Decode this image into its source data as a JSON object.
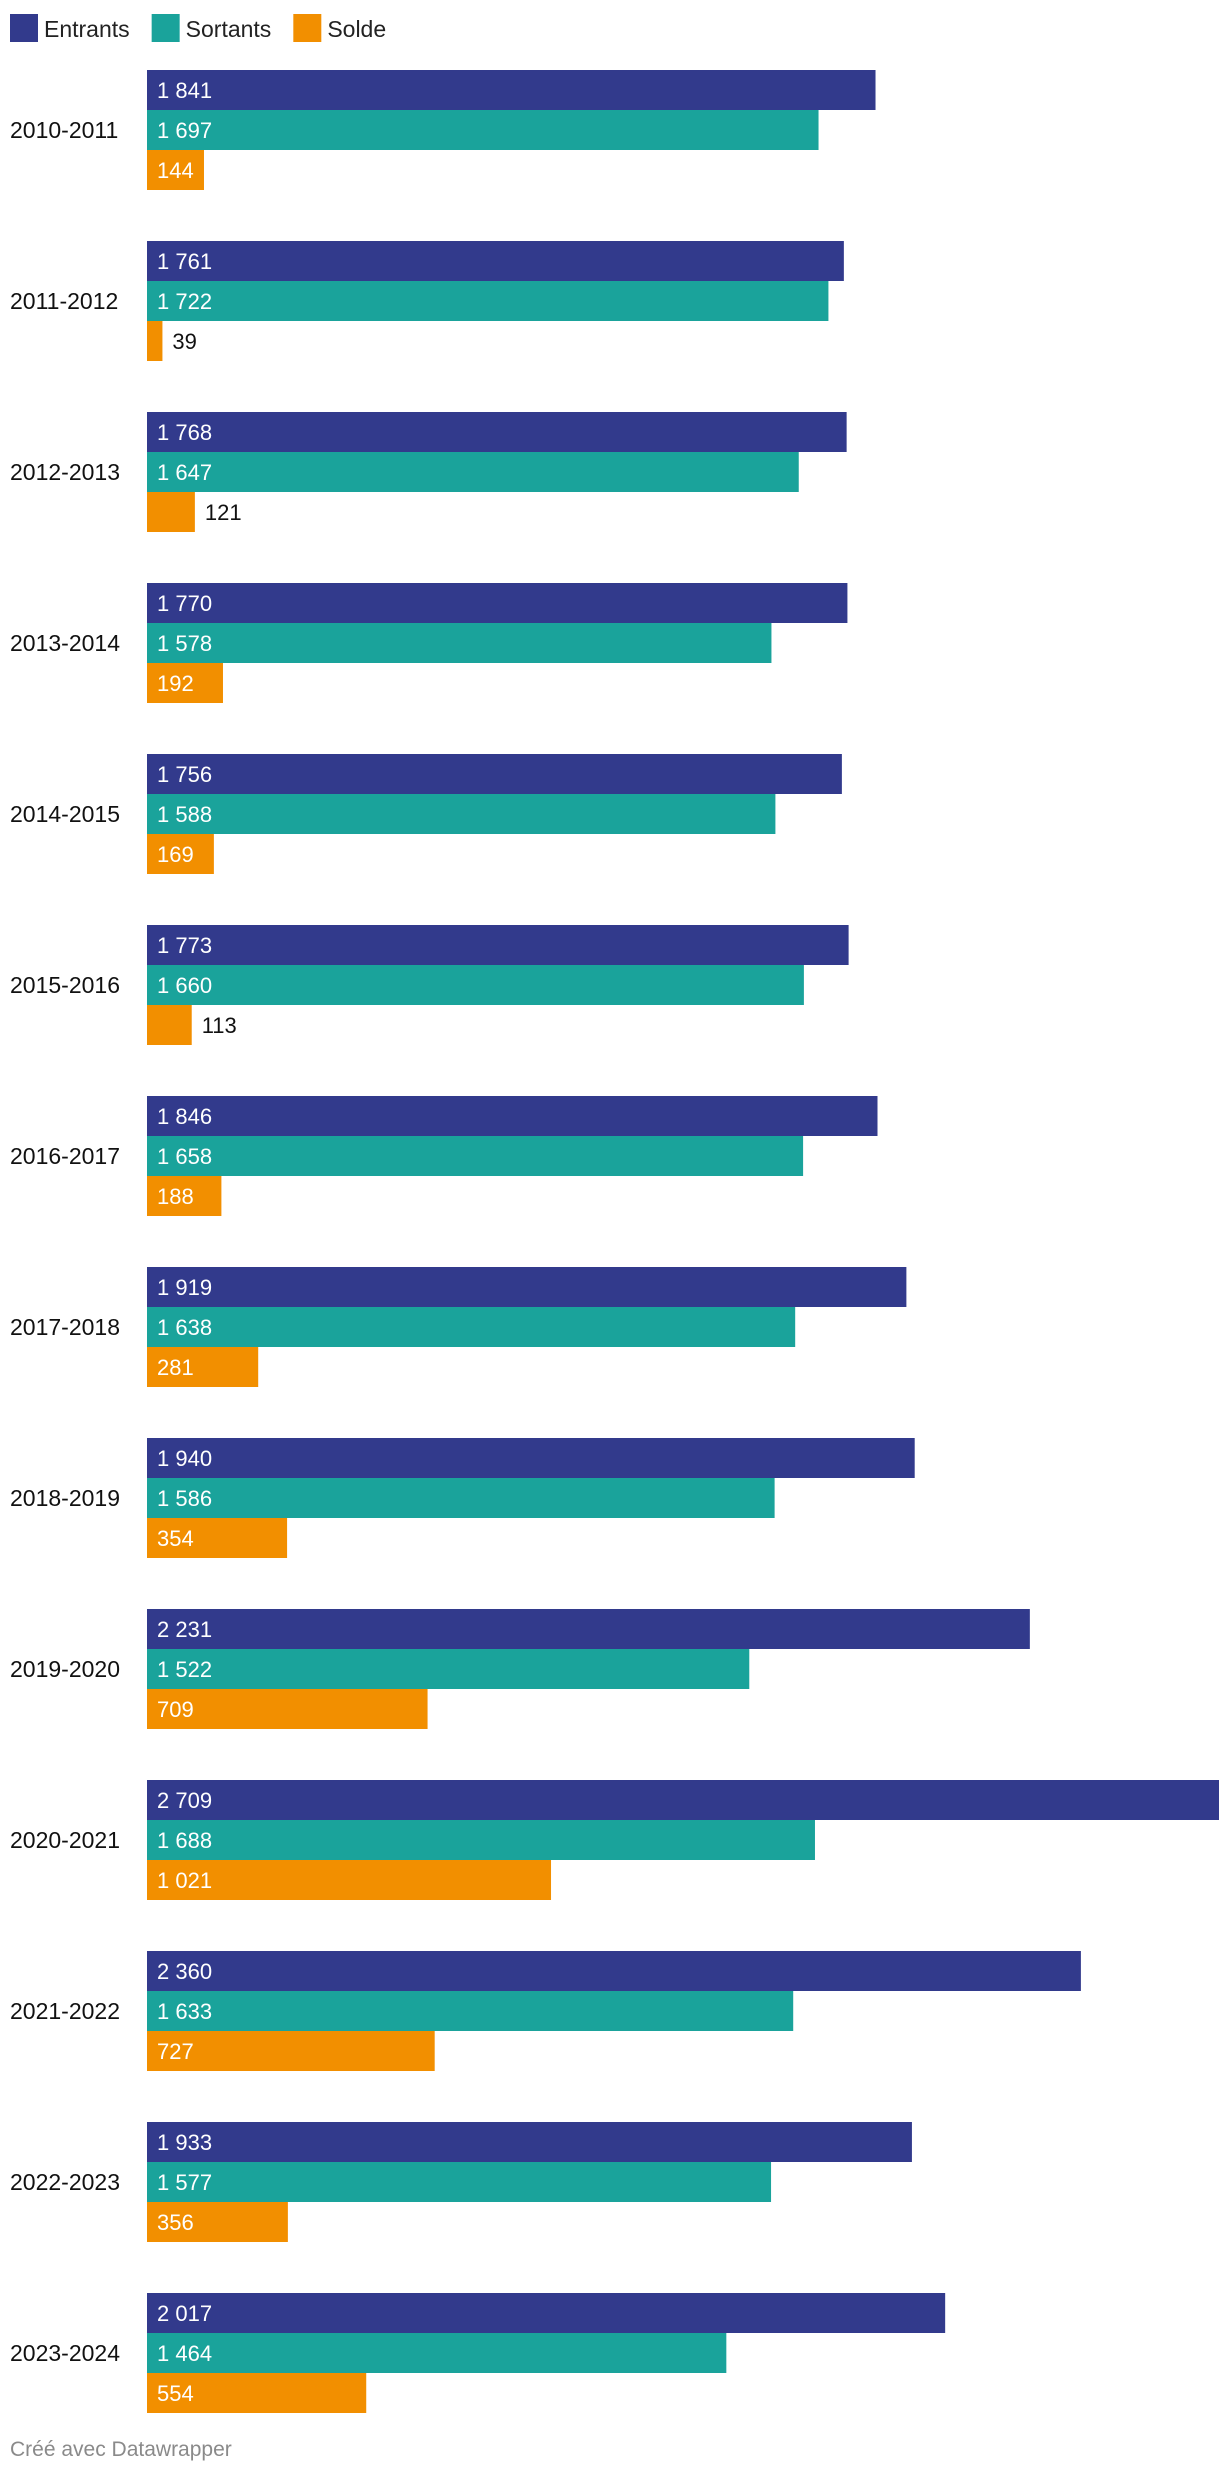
{
  "chart_data": {
    "type": "bar",
    "orientation": "horizontal",
    "title": "",
    "xlabel": "",
    "ylabel": "",
    "xlim": [
      0,
      2709
    ],
    "grid": false,
    "legend_position": "top-left",
    "categories": [
      "2010-2011",
      "2011-2012",
      "2012-2013",
      "2013-2014",
      "2014-2015",
      "2015-2016",
      "2016-2017",
      "2017-2018",
      "2018-2019",
      "2019-2020",
      "2020-2021",
      "2021-2022",
      "2022-2023",
      "2023-2024"
    ],
    "series": [
      {
        "name": "Entrants",
        "color": "#323a8c",
        "values": [
          1841,
          1761,
          1768,
          1770,
          1756,
          1773,
          1846,
          1919,
          1940,
          2231,
          2709,
          2360,
          1933,
          2017
        ],
        "labels": [
          "1 841",
          "1 761",
          "1 768",
          "1 770",
          "1 756",
          "1 773",
          "1 846",
          "1 919",
          "1 940",
          "2 231",
          "2 709",
          "2 360",
          "1 933",
          "2 017"
        ]
      },
      {
        "name": "Sortants",
        "color": "#1aa39b",
        "values": [
          1697,
          1722,
          1647,
          1578,
          1588,
          1660,
          1658,
          1638,
          1586,
          1522,
          1688,
          1633,
          1577,
          1464
        ],
        "labels": [
          "1 697",
          "1 722",
          "1 647",
          "1 578",
          "1 588",
          "1 660",
          "1 658",
          "1 638",
          "1 586",
          "1 522",
          "1 688",
          "1 633",
          "1 577",
          "1 464"
        ]
      },
      {
        "name": "Solde",
        "color": "#f28f00",
        "values": [
          144,
          39,
          121,
          192,
          169,
          113,
          188,
          281,
          354,
          709,
          1021,
          727,
          356,
          554
        ],
        "labels": [
          "144",
          "39",
          "121",
          "192",
          "169",
          "113",
          "188",
          "281",
          "354",
          "709",
          "1 021",
          "727",
          "356",
          "554"
        ]
      }
    ]
  },
  "footer": {
    "credit": "Créé avec Datawrapper"
  }
}
